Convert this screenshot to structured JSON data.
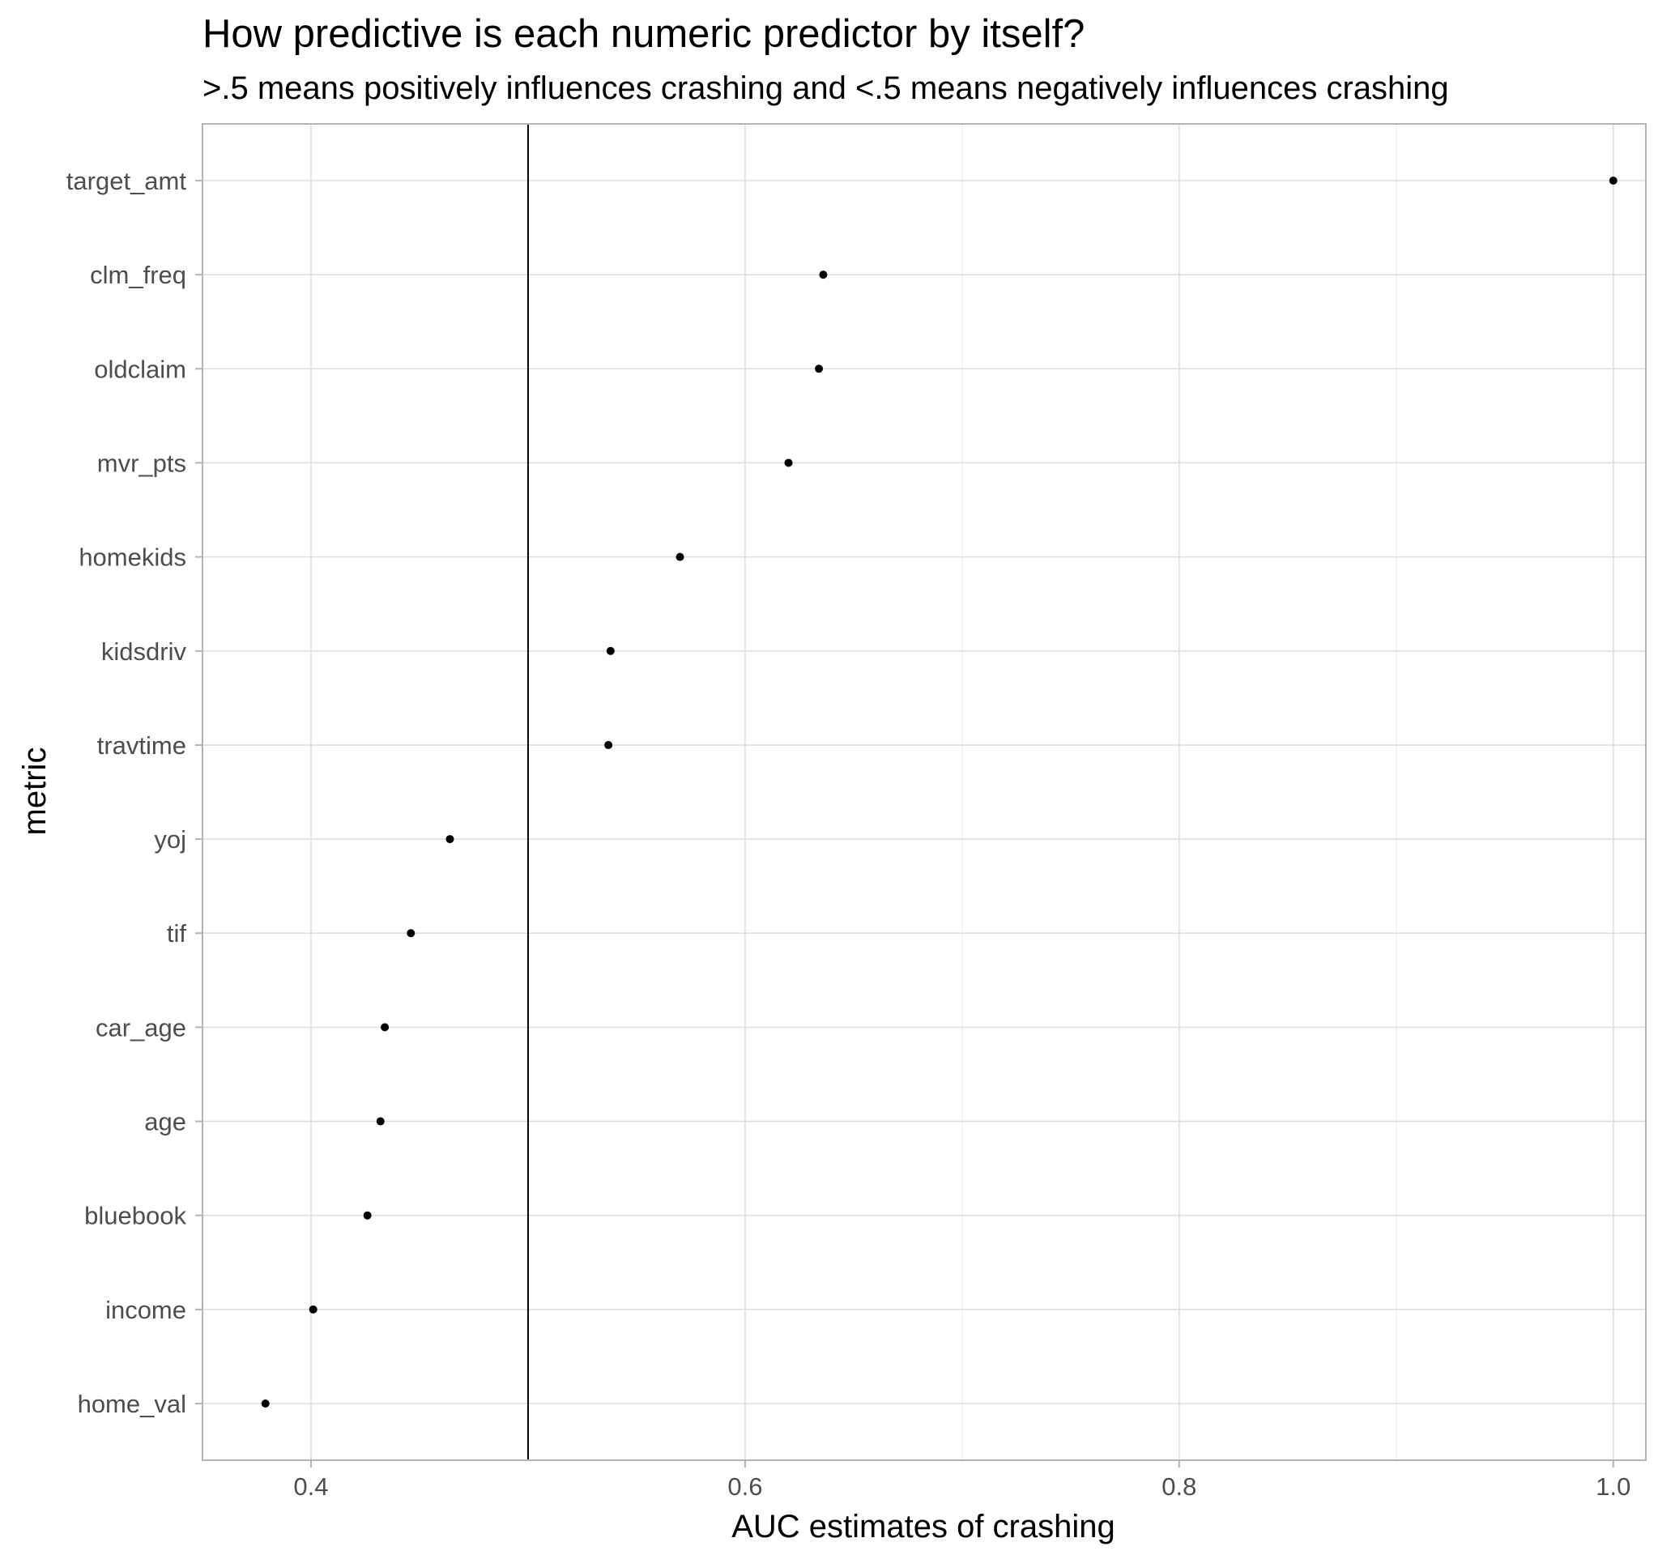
{
  "chart_data": {
    "type": "scatter",
    "title": "How predictive is each numeric predictor by itself?",
    "subtitle": ">.5 means positively influences crashing and <.5 means negatively influences crashing",
    "xlabel": "AUC estimates of crashing",
    "ylabel": "metric",
    "xlim": [
      0.35,
      1.015
    ],
    "x_ticks": [
      0.4,
      0.6,
      0.8,
      1.0
    ],
    "x_tick_labels": [
      "0.4",
      "0.6",
      "0.8",
      "1.0"
    ],
    "reference_line_x": 0.5,
    "grid": true,
    "categories": [
      "target_amt",
      "clm_freq",
      "oldclaim",
      "mvr_pts",
      "homekids",
      "kidsdriv",
      "travtime",
      "yoj",
      "tif",
      "car_age",
      "age",
      "bluebook",
      "income",
      "home_val"
    ],
    "values": [
      1.0,
      0.636,
      0.634,
      0.62,
      0.57,
      0.538,
      0.537,
      0.464,
      0.446,
      0.434,
      0.432,
      0.426,
      0.401,
      0.379
    ],
    "point_color": "#000000"
  }
}
